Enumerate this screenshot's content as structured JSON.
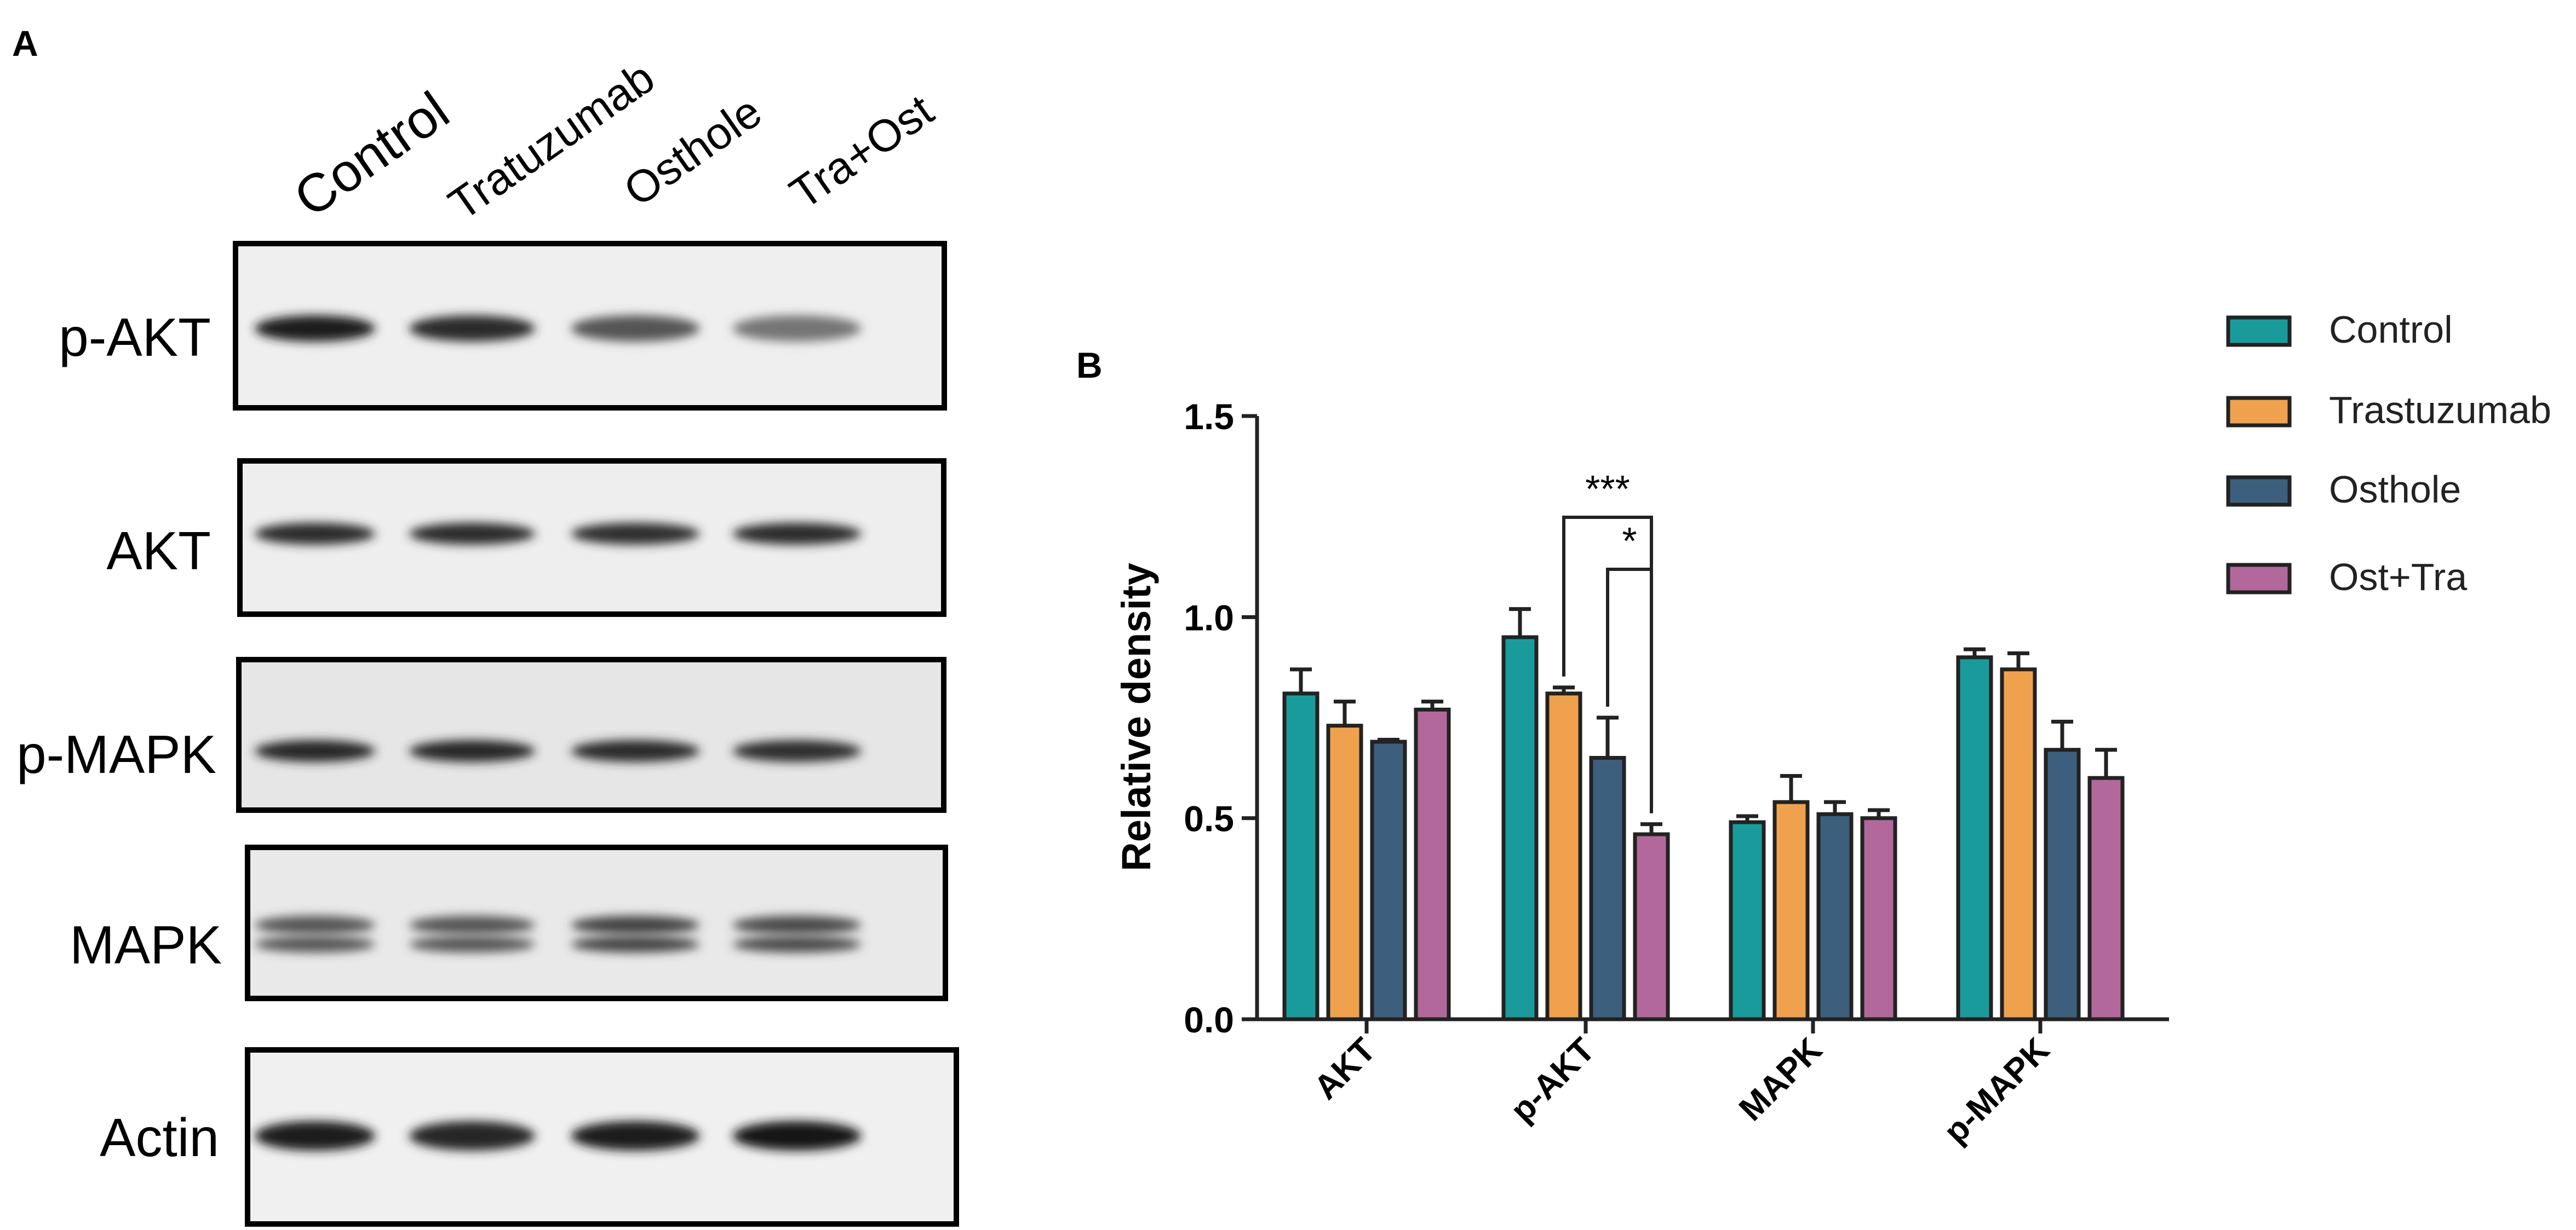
{
  "panel_a": {
    "letter": "A",
    "lanes": [
      "Control",
      "Tratuzumab",
      "Osthole",
      "Tra+Ost"
    ],
    "blots": [
      {
        "label": "p-AKT",
        "intensity": [
          0.95,
          0.9,
          0.7,
          0.55
        ]
      },
      {
        "label": "AKT",
        "intensity": [
          0.9,
          0.9,
          0.88,
          0.9
        ]
      },
      {
        "label": "p-MAPK",
        "intensity": [
          0.92,
          0.92,
          0.9,
          0.88
        ]
      },
      {
        "label": "MAPK",
        "intensity": [
          0.7,
          0.7,
          0.78,
          0.75
        ]
      },
      {
        "label": "Actin",
        "intensity": [
          0.95,
          0.92,
          0.97,
          1.0
        ]
      }
    ]
  },
  "panel_b": {
    "letter": "B",
    "chart_data": {
      "type": "bar",
      "title": "",
      "xlabel": "",
      "ylabel": "Relative density",
      "ylim": [
        0,
        1.5
      ],
      "yticks": [
        "0.0",
        "0.5",
        "1.0",
        "1.5"
      ],
      "categories": [
        "AKT",
        "p-AKT",
        "MAPK",
        "p-MAPK"
      ],
      "series": [
        {
          "name": "Control",
          "color": "#1a9b9b",
          "values": [
            0.81,
            0.95,
            0.49,
            0.9
          ],
          "errors": [
            0.06,
            0.07,
            0.015,
            0.02
          ]
        },
        {
          "name": "Trastuzumab",
          "color": "#f0a14e",
          "values": [
            0.73,
            0.81,
            0.54,
            0.87
          ],
          "errors": [
            0.06,
            0.015,
            0.065,
            0.04
          ]
        },
        {
          "name": "Osthole",
          "color": "#3d5f7e",
          "values": [
            0.69,
            0.65,
            0.51,
            0.67
          ],
          "errors": [
            0.005,
            0.1,
            0.03,
            0.07
          ]
        },
        {
          "name": "Ost+Tra",
          "color": "#b2689a",
          "values": [
            0.77,
            0.46,
            0.5,
            0.6
          ],
          "errors": [
            0.02,
            0.025,
            0.02,
            0.07
          ]
        }
      ],
      "significance": [
        {
          "label": "***",
          "category": "p-AKT",
          "from": "Trastuzumab",
          "to": "Ost+Tra"
        },
        {
          "label": "*",
          "category": "p-AKT",
          "from": "Osthole",
          "to": "Ost+Tra"
        }
      ],
      "legend_position": "top-right",
      "grid": false
    }
  }
}
